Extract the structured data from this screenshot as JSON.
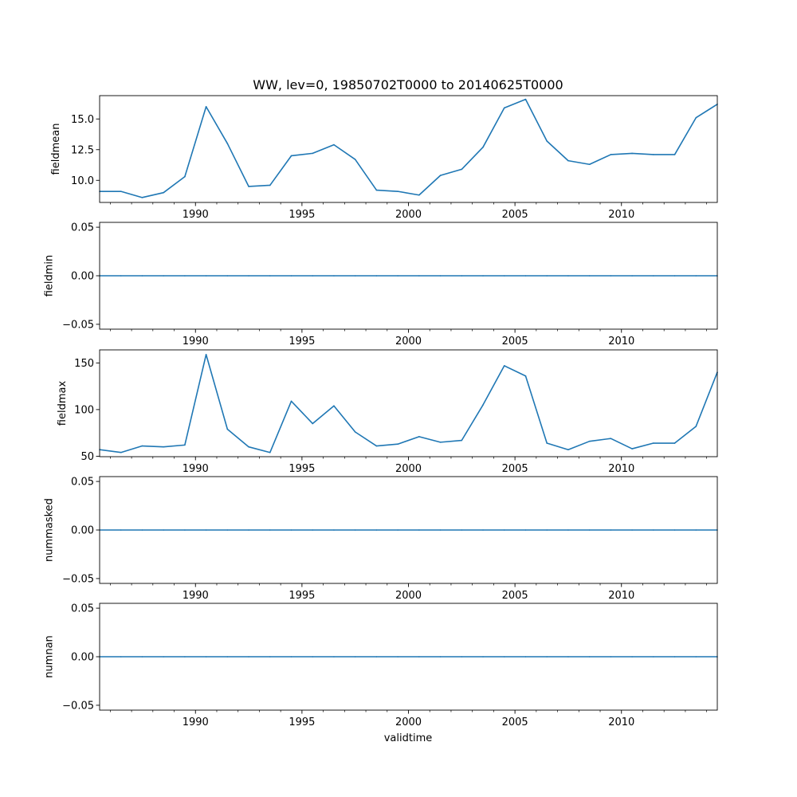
{
  "chart_data": {
    "type": "line",
    "title": "WW, lev=0, 19850702T0000 to 20140625T0000",
    "xlabel": "validtime",
    "xlim": [
      1985.5,
      2014.5
    ],
    "x_major_ticks": [
      1990,
      1995,
      2000,
      2005,
      2010
    ],
    "x_tick_labels": [
      "1990",
      "1995",
      "2000",
      "2005",
      "2010"
    ],
    "x": [
      1985.5,
      1986.5,
      1987.5,
      1988.5,
      1989.5,
      1990.5,
      1991.5,
      1992.5,
      1993.5,
      1994.5,
      1995.5,
      1996.5,
      1997.5,
      1998.5,
      1999.5,
      2000.5,
      2001.5,
      2002.5,
      2003.5,
      2004.5,
      2005.5,
      2006.5,
      2007.5,
      2008.5,
      2009.5,
      2010.5,
      2011.5,
      2012.5,
      2013.5,
      2014.5
    ],
    "series_color": "#1f77b4",
    "panels": [
      {
        "ylabel": "fieldmean",
        "ylim": [
          8.2,
          16.9
        ],
        "yticks": [
          10.0,
          12.5,
          15.0
        ],
        "ytick_labels": [
          "10.0",
          "12.5",
          "15.0"
        ],
        "values": [
          9.1,
          9.1,
          8.6,
          9.0,
          10.3,
          16.0,
          13.0,
          9.5,
          9.6,
          12.0,
          12.2,
          12.9,
          11.7,
          9.2,
          9.1,
          8.8,
          10.4,
          10.9,
          12.7,
          15.9,
          16.6,
          13.2,
          11.6,
          11.3,
          12.1,
          12.2,
          12.1,
          12.1,
          15.1,
          16.2
        ]
      },
      {
        "ylabel": "fieldmin",
        "ylim": [
          -0.055,
          0.055
        ],
        "yticks": [
          -0.05,
          0.0,
          0.05
        ],
        "ytick_labels": [
          "−0.05",
          "0.00",
          "0.05"
        ],
        "values": [
          0,
          0,
          0,
          0,
          0,
          0,
          0,
          0,
          0,
          0,
          0,
          0,
          0,
          0,
          0,
          0,
          0,
          0,
          0,
          0,
          0,
          0,
          0,
          0,
          0,
          0,
          0,
          0,
          0,
          0
        ]
      },
      {
        "ylabel": "fieldmax",
        "ylim": [
          49.5,
          164
        ],
        "yticks": [
          50,
          100,
          150
        ],
        "ytick_labels": [
          "50",
          "100",
          "150"
        ],
        "values": [
          57,
          54,
          61,
          60,
          62,
          159,
          79,
          60,
          54,
          109,
          85,
          104,
          76,
          61,
          63,
          71,
          65,
          67,
          105,
          147,
          136,
          64,
          57,
          66,
          69,
          58,
          64,
          64,
          82,
          140
        ]
      },
      {
        "ylabel": "nummasked",
        "ylim": [
          -0.055,
          0.055
        ],
        "yticks": [
          -0.05,
          0.0,
          0.05
        ],
        "ytick_labels": [
          "−0.05",
          "0.00",
          "0.05"
        ],
        "values": [
          0,
          0,
          0,
          0,
          0,
          0,
          0,
          0,
          0,
          0,
          0,
          0,
          0,
          0,
          0,
          0,
          0,
          0,
          0,
          0,
          0,
          0,
          0,
          0,
          0,
          0,
          0,
          0,
          0,
          0
        ]
      },
      {
        "ylabel": "numnan",
        "ylim": [
          -0.055,
          0.055
        ],
        "yticks": [
          -0.05,
          0.0,
          0.05
        ],
        "ytick_labels": [
          "−0.05",
          "0.00",
          "0.05"
        ],
        "values": [
          0,
          0,
          0,
          0,
          0,
          0,
          0,
          0,
          0,
          0,
          0,
          0,
          0,
          0,
          0,
          0,
          0,
          0,
          0,
          0,
          0,
          0,
          0,
          0,
          0,
          0,
          0,
          0,
          0,
          0
        ]
      }
    ]
  }
}
